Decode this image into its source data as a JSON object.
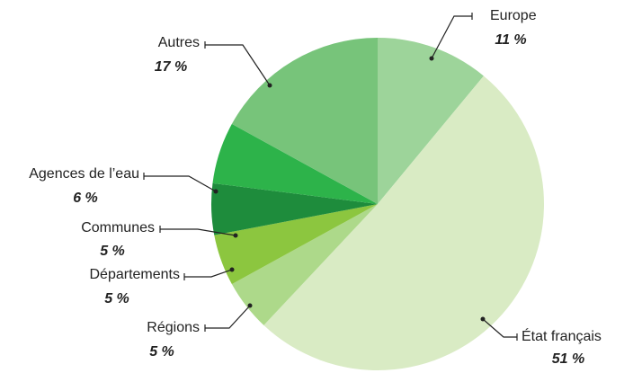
{
  "chart_data": {
    "type": "pie",
    "categories": [
      "Europe",
      "État français",
      "Régions",
      "Départements",
      "Communes",
      "Agences de l’eau",
      "Autres"
    ],
    "values": [
      11,
      51,
      5,
      5,
      5,
      6,
      17
    ],
    "value_labels": [
      "11 %",
      "51 %",
      "5 %",
      "5 %",
      "5 %",
      "6 %",
      "17 %"
    ],
    "colors": [
      "#9dd49a",
      "#d9ebc4",
      "#add98a",
      "#8cc63f",
      "#1e8c3c",
      "#2db34a",
      "#77c47a"
    ]
  }
}
